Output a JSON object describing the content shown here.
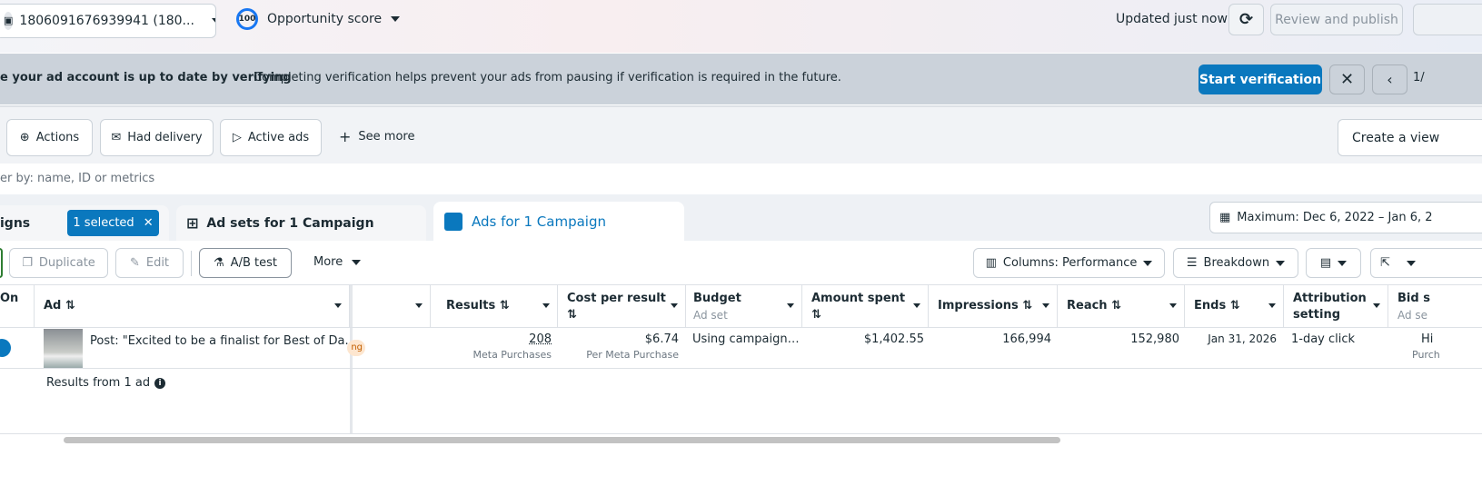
{
  "topbar": {
    "account": "1806091676939941 (180...",
    "score": "100",
    "score_label": "Opportunity score",
    "updated": "Updated just now",
    "review_publish": "Review and publish"
  },
  "banner": {
    "title": "e your ad account is up to date by verifying",
    "text": "Completing verification helps prevent your ads from pausing if verification is required in the future.",
    "start": "Start verification",
    "pager": "1/"
  },
  "filters": {
    "items": [
      "Actions",
      "Had delivery",
      "Active ads"
    ],
    "see_more": "See more",
    "create_view": "Create a view"
  },
  "search": {
    "placeholder": "er by: name, ID or metrics"
  },
  "tabs": {
    "campaigns": "igns",
    "selected": "1 selected",
    "adsets": "Ad sets for 1 Campaign",
    "ads": "Ads for 1 Campaign",
    "date": "Maximum: Dec 6, 2022 – Jan 6, 2"
  },
  "toolbar": {
    "duplicate": "Duplicate",
    "edit": "Edit",
    "ab": "A/B test",
    "more": "More",
    "columns": "Columns: Performance",
    "breakdown": "Breakdown"
  },
  "table": {
    "headers": {
      "on": "On",
      "ad": "Ad ⇅",
      "results": "Results ⇅",
      "cpr": "Cost per result",
      "cpr2": "⇅",
      "budget": "Budget",
      "budget_sub": "Ad set",
      "spent": "Amount spent",
      "spent2": "⇅",
      "impr": "Impressions ⇅",
      "reach": "Reach ⇅",
      "ends": "Ends ⇅",
      "attr": "Attribution",
      "attr2": "setting",
      "bid": "Bid s",
      "bid_sub": "Ad se"
    },
    "row": {
      "ad": "Post: \"Excited to be a finalist for Best of Da...",
      "badge": "ng",
      "results": "208",
      "results_sub": "Meta Purchases",
      "cpr": "$6.74",
      "cpr_sub": "Per Meta Purchase",
      "budget": "Using campaign…",
      "spent": "$1,402.55",
      "impr": "166,994",
      "reach": "152,980",
      "ends": "Jan 31, 2026",
      "attr": "1-day click",
      "bid": "Hi",
      "bid_sub": "Purch"
    },
    "footer": "Results from 1 ad"
  },
  "colors": {
    "accent": "#0a78be",
    "banner": "#cbd2da"
  }
}
